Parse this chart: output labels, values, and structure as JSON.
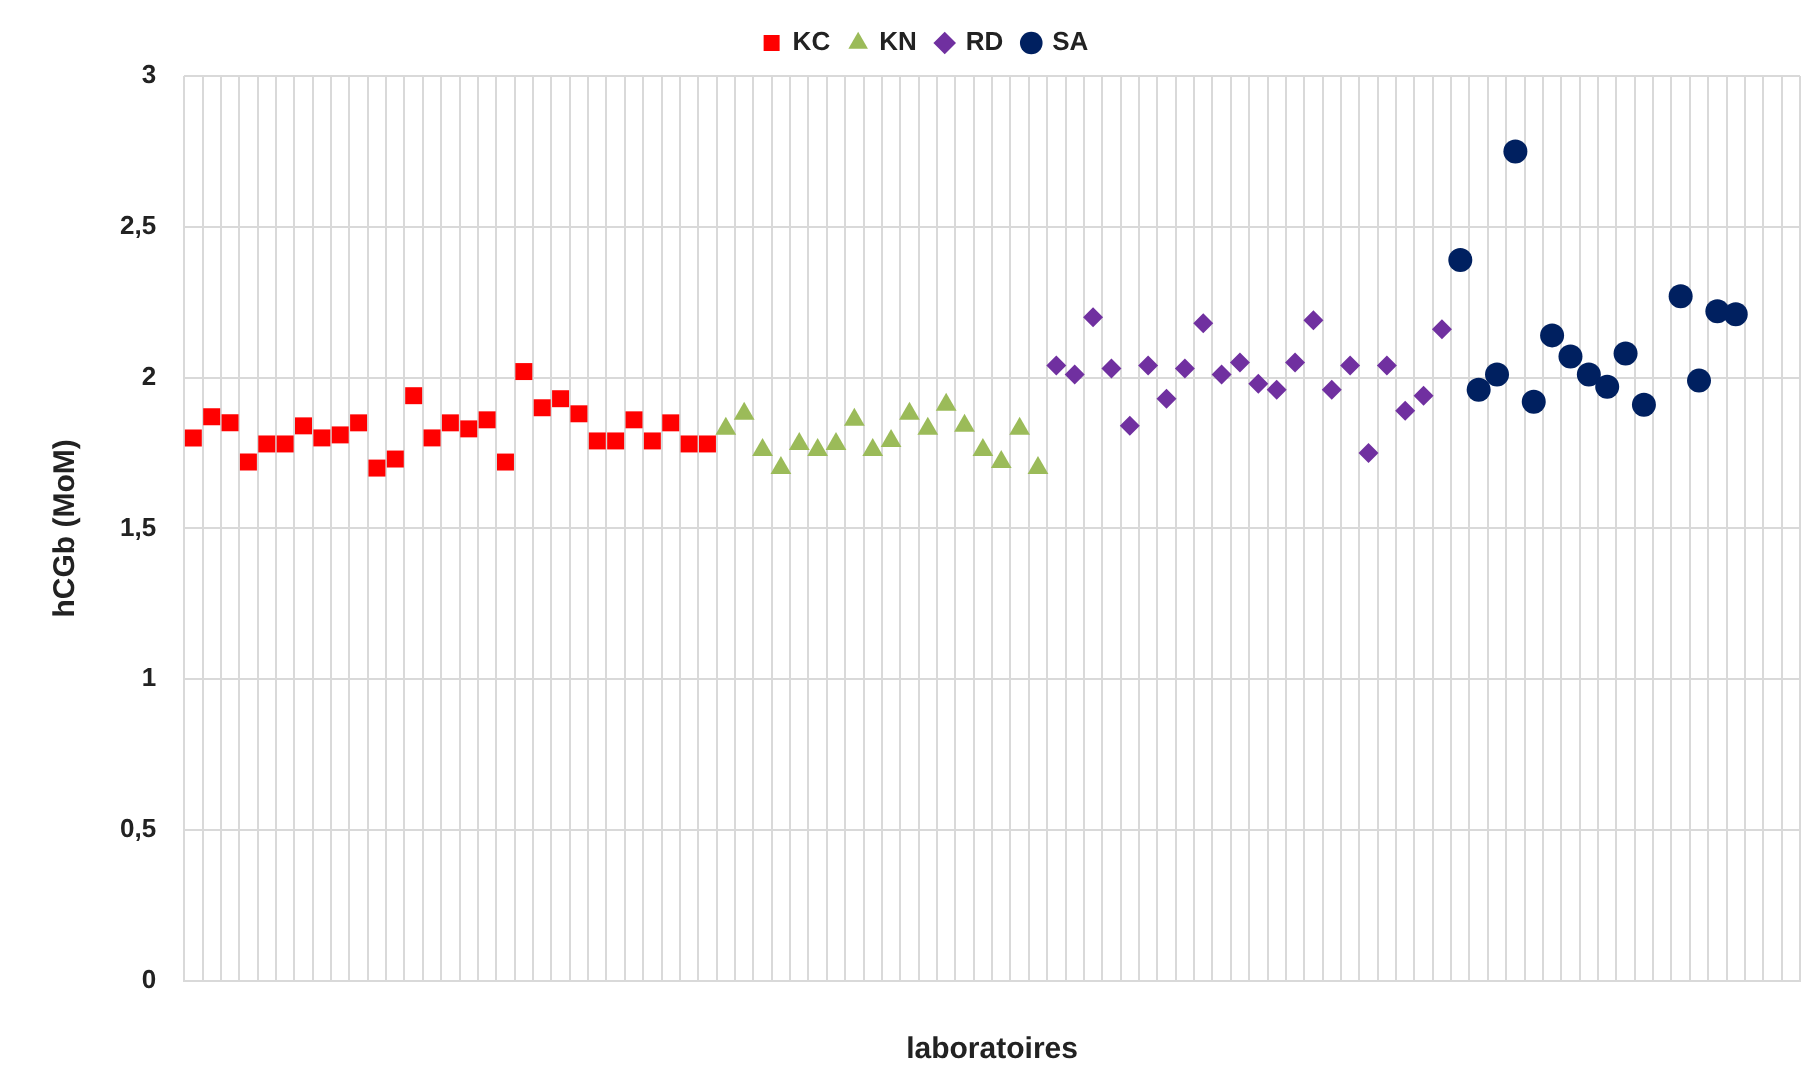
{
  "chart_data": {
    "type": "scatter",
    "xlabel": "laboratoires",
    "ylabel": "hCGb (MoM)",
    "categories": [
      null,
      null,
      null,
      null,
      null,
      null,
      null,
      null,
      null,
      null,
      null,
      null,
      null,
      null,
      null,
      null,
      null,
      null,
      null,
      null,
      null,
      null,
      null,
      null,
      null,
      null,
      null,
      null,
      null,
      null,
      null,
      null,
      null,
      null,
      null,
      null,
      null,
      null,
      null,
      null,
      null,
      null,
      null,
      null,
      null,
      null,
      null,
      null,
      null,
      null,
      null,
      null,
      null,
      null,
      null,
      null,
      null,
      null,
      null,
      null,
      null,
      null,
      null,
      null,
      null,
      null,
      null,
      null,
      null,
      null,
      null,
      null,
      null,
      null,
      null,
      null,
      null,
      null,
      null,
      null,
      null,
      null,
      null,
      null,
      null,
      null,
      null,
      null
    ],
    "series": [
      {
        "name": "KC",
        "color": "#ff0000",
        "marker": "square",
        "values": [
          1.8,
          1.87,
          1.85,
          1.72,
          1.78,
          1.78,
          1.84,
          1.8,
          1.81,
          1.85,
          1.7,
          1.73,
          1.94,
          1.8,
          1.85,
          1.83,
          1.86,
          1.72,
          2.02,
          1.9,
          1.93,
          1.88,
          1.79,
          1.79,
          1.86,
          1.79,
          1.85,
          1.78,
          1.78,
          null,
          null,
          null,
          null,
          null,
          null,
          null,
          null,
          null,
          null,
          null,
          null,
          null,
          null,
          null,
          null,
          null,
          null,
          null,
          null,
          null,
          null,
          null,
          null,
          null,
          null,
          null,
          null,
          null,
          null,
          null,
          null,
          null,
          null,
          null,
          null,
          null,
          null,
          null,
          null,
          null,
          null,
          null,
          null,
          null,
          null,
          null,
          null,
          null,
          null,
          null,
          null,
          null,
          null,
          null,
          null,
          null,
          null,
          null
        ]
      },
      {
        "name": "KN",
        "color": "#9bbb59",
        "marker": "triangle",
        "values": [
          null,
          null,
          null,
          null,
          null,
          null,
          null,
          null,
          null,
          null,
          null,
          null,
          null,
          null,
          null,
          null,
          null,
          null,
          null,
          null,
          null,
          null,
          null,
          null,
          null,
          null,
          null,
          null,
          null,
          1.83,
          1.88,
          1.76,
          1.7,
          1.78,
          1.76,
          1.78,
          1.86,
          1.76,
          1.79,
          1.88,
          1.83,
          1.91,
          1.84,
          1.76,
          1.72,
          1.83,
          1.7,
          null,
          null,
          null,
          null,
          null,
          null,
          null,
          null,
          null,
          null,
          null,
          null,
          null,
          null,
          null,
          null,
          null,
          null,
          null,
          null,
          null,
          null,
          null,
          null,
          null,
          null,
          null,
          null,
          null,
          null,
          null,
          null,
          null,
          null,
          null,
          null,
          null,
          null,
          null,
          null,
          null
        ]
      },
      {
        "name": "RD",
        "color": "#7030a0",
        "marker": "diamond",
        "values": [
          null,
          null,
          null,
          null,
          null,
          null,
          null,
          null,
          null,
          null,
          null,
          null,
          null,
          null,
          null,
          null,
          null,
          null,
          null,
          null,
          null,
          null,
          null,
          null,
          null,
          null,
          null,
          null,
          null,
          null,
          null,
          null,
          null,
          null,
          null,
          null,
          null,
          null,
          null,
          null,
          null,
          null,
          null,
          null,
          null,
          null,
          null,
          2.04,
          2.01,
          2.2,
          2.03,
          1.84,
          2.04,
          1.93,
          2.03,
          2.18,
          2.01,
          2.05,
          1.98,
          1.96,
          2.05,
          2.19,
          1.96,
          2.04,
          1.75,
          2.04,
          1.89,
          1.94,
          2.16,
          null,
          null,
          null,
          null,
          null,
          null,
          null,
          null,
          null,
          null,
          null,
          null,
          null,
          null,
          null,
          null,
          null,
          null,
          null
        ]
      },
      {
        "name": "SA",
        "color": "#002060",
        "marker": "circle",
        "values": [
          null,
          null,
          null,
          null,
          null,
          null,
          null,
          null,
          null,
          null,
          null,
          null,
          null,
          null,
          null,
          null,
          null,
          null,
          null,
          null,
          null,
          null,
          null,
          null,
          null,
          null,
          null,
          null,
          null,
          null,
          null,
          null,
          null,
          null,
          null,
          null,
          null,
          null,
          null,
          null,
          null,
          null,
          null,
          null,
          null,
          null,
          null,
          null,
          null,
          null,
          null,
          null,
          null,
          null,
          null,
          null,
          null,
          null,
          null,
          null,
          null,
          null,
          null,
          null,
          null,
          null,
          null,
          null,
          null,
          2.39,
          1.96,
          2.01,
          2.75,
          1.92,
          2.14,
          2.07,
          2.01,
          1.97,
          2.08,
          1.91,
          null,
          2.27,
          1.99,
          2.22,
          2.21,
          null,
          null,
          null
        ]
      }
    ],
    "ylim": [
      0,
      3
    ],
    "yticks": [
      0,
      {
        "value": 0.5,
        "label": "0,5"
      },
      1,
      {
        "value": 1.5,
        "label": "1,5"
      },
      2,
      {
        "value": 2.5,
        "label": "2,5"
      },
      3
    ],
    "grid": true,
    "legend": "top"
  }
}
